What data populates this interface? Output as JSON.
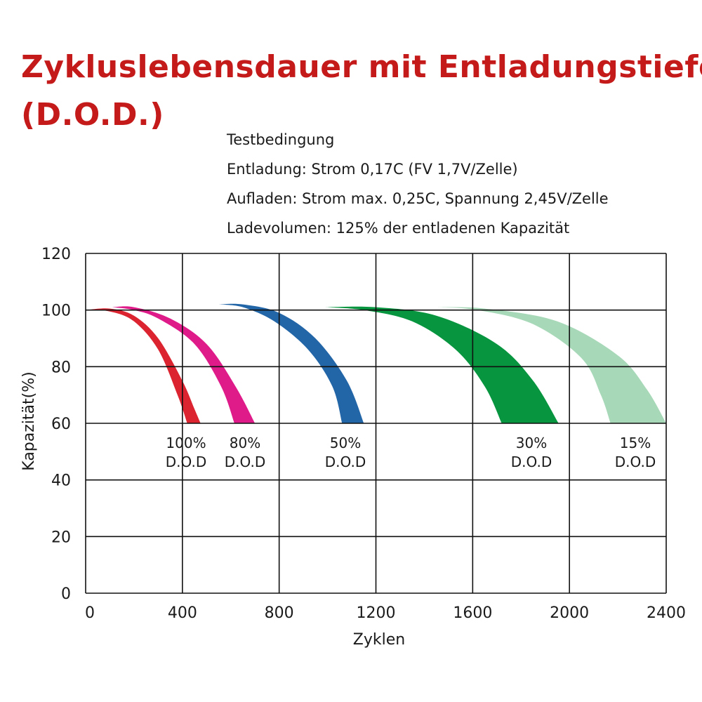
{
  "colors": {
    "title": "#c41a1a",
    "grid": "#111111"
  },
  "title_lines": [
    "Zykluslebensdauer mit Entladungstiefe",
    "(D.O.D.)"
  ],
  "conditions": [
    "Testbedingung",
    "Entladung: Strom 0,17C (FV 1,7V/Zelle)",
    "Aufladen: Strom max. 0,25C, Spannung 2,45V/Zelle",
    "Ladevolumen: 125% der entladenen Kapazität"
  ],
  "chart_data": {
    "type": "area",
    "xlabel": "Zyklen",
    "ylabel": "Kapazität(%)",
    "xlim": [
      0,
      2400
    ],
    "ylim": [
      0,
      120
    ],
    "xticks": [
      "0",
      "400",
      "800",
      "1200",
      "1600",
      "2000",
      "2400"
    ],
    "yticks": [
      "0",
      "20",
      "40",
      "60",
      "80",
      "100",
      "120"
    ],
    "grid": true,
    "series": [
      {
        "name": "100% D.O.D",
        "label_lines": [
          "100%",
          "D.O.D"
        ],
        "color": "#dc2430",
        "upper": [
          [
            0,
            100
          ],
          [
            100,
            100.5
          ],
          [
            200,
            98
          ],
          [
            300,
            90
          ],
          [
            400,
            75
          ],
          [
            450,
            65
          ],
          [
            475,
            60
          ]
        ],
        "lower": [
          [
            0,
            100
          ],
          [
            100,
            99.5
          ],
          [
            200,
            96
          ],
          [
            300,
            86
          ],
          [
            380,
            70
          ],
          [
            420,
            60
          ]
        ]
      },
      {
        "name": "80% D.O.D",
        "label_lines": [
          "80%",
          "D.O.D"
        ],
        "color": "#df1b8a",
        "upper": [
          [
            110,
            101
          ],
          [
            200,
            101
          ],
          [
            350,
            97
          ],
          [
            500,
            88
          ],
          [
            620,
            73
          ],
          [
            700,
            60
          ]
        ],
        "lower": [
          [
            110,
            101
          ],
          [
            200,
            100
          ],
          [
            300,
            97
          ],
          [
            450,
            88
          ],
          [
            560,
            73
          ],
          [
            615,
            60
          ]
        ]
      },
      {
        "name": "50% D.O.D",
        "label_lines": [
          "50%",
          "D.O.D"
        ],
        "color": "#2366a8",
        "upper": [
          [
            550,
            102
          ],
          [
            650,
            102
          ],
          [
            800,
            99
          ],
          [
            950,
            90
          ],
          [
            1080,
            75
          ],
          [
            1150,
            60
          ]
        ],
        "lower": [
          [
            550,
            102
          ],
          [
            650,
            101
          ],
          [
            780,
            96
          ],
          [
            920,
            86
          ],
          [
            1020,
            73
          ],
          [
            1060,
            60
          ]
        ]
      },
      {
        "name": "30% D.O.D",
        "label_lines": [
          "30%",
          "D.O.D"
        ],
        "color": "#07953f",
        "upper": [
          [
            990,
            101
          ],
          [
            1200,
            101
          ],
          [
            1450,
            98
          ],
          [
            1700,
            88
          ],
          [
            1850,
            75
          ],
          [
            1955,
            60
          ]
        ],
        "lower": [
          [
            990,
            101
          ],
          [
            1150,
            100
          ],
          [
            1350,
            96
          ],
          [
            1530,
            86
          ],
          [
            1650,
            73
          ],
          [
            1720,
            60
          ]
        ]
      },
      {
        "name": "15% D.O.D",
        "label_lines": [
          "15%",
          "D.O.D"
        ],
        "color": "#a7d8b8",
        "upper": [
          [
            1450,
            101
          ],
          [
            1650,
            100.5
          ],
          [
            1950,
            96
          ],
          [
            2200,
            84
          ],
          [
            2320,
            72
          ],
          [
            2400,
            60
          ]
        ],
        "lower": [
          [
            1450,
            101
          ],
          [
            1620,
            100
          ],
          [
            1850,
            95
          ],
          [
            2050,
            83
          ],
          [
            2130,
            70
          ],
          [
            2170,
            60
          ]
        ]
      }
    ]
  }
}
